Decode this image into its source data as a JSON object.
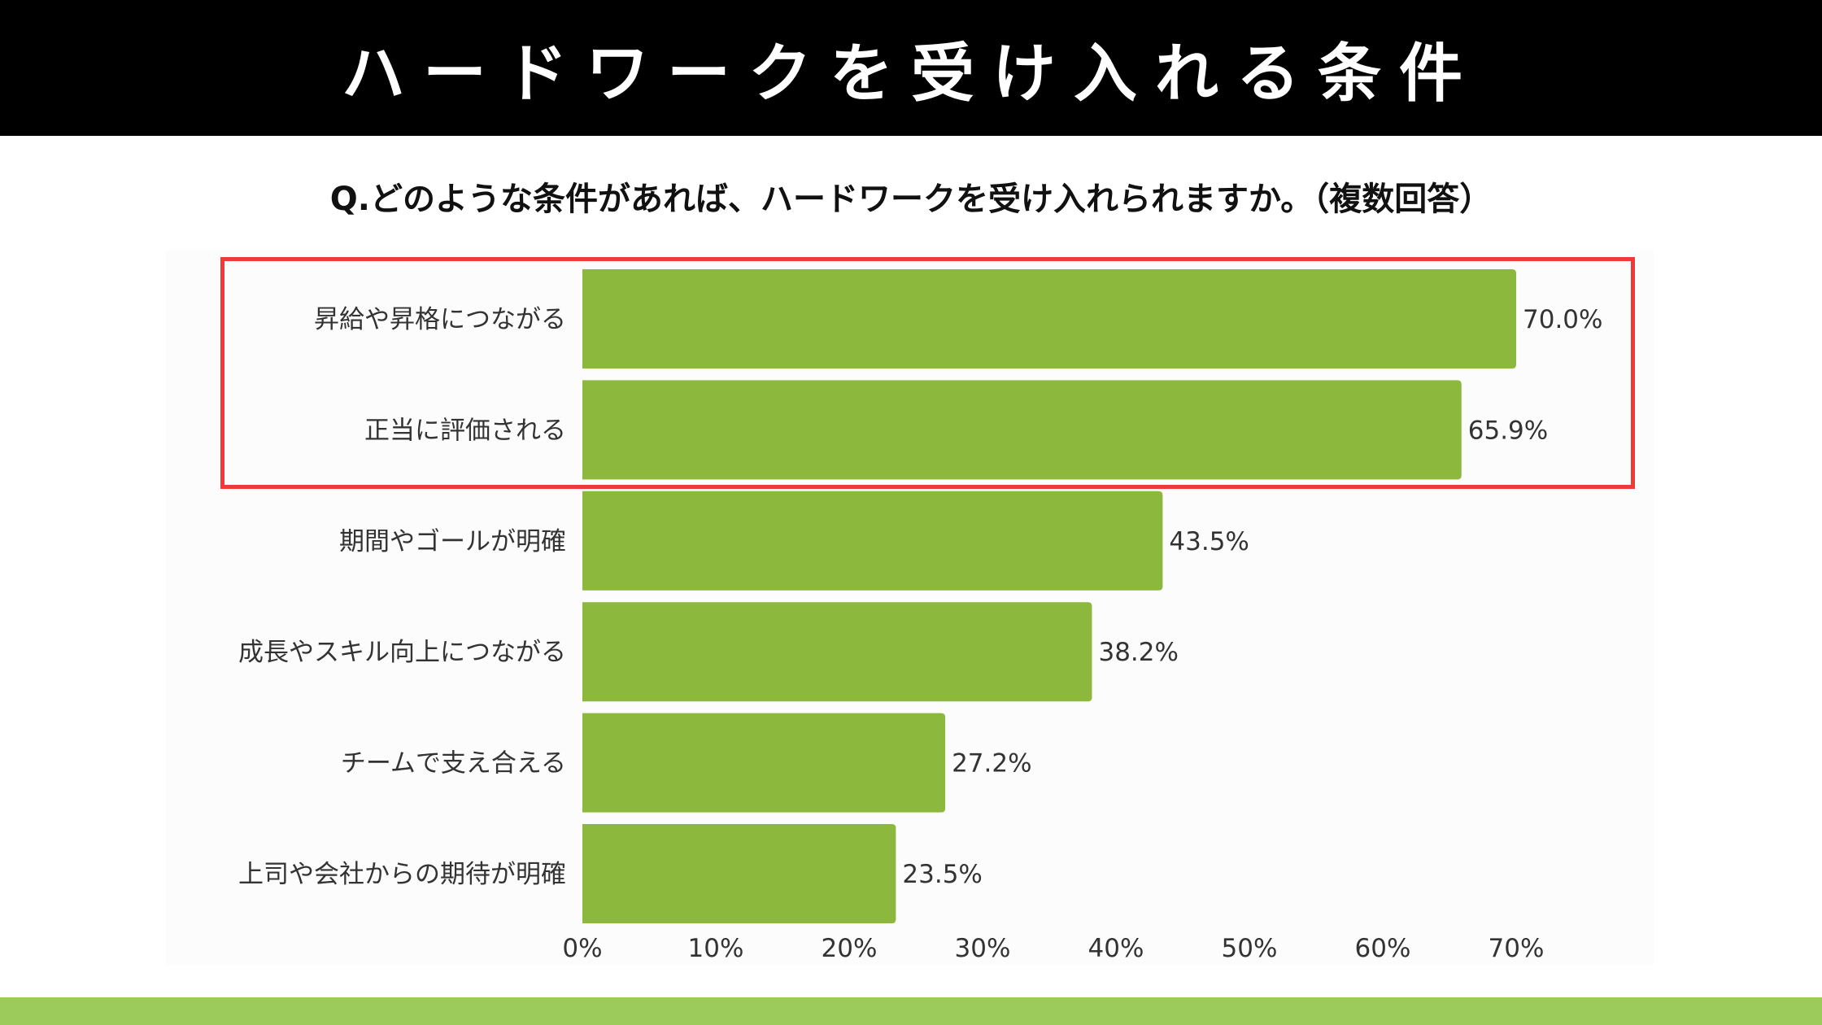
{
  "header": {
    "title": "ハードワークを受け入れる条件"
  },
  "question": "Q.どのような条件があれば、ハードワークを受け入れられますか。（複数回答）",
  "colors": {
    "bar": "#8bb83d",
    "highlight": "#f03a3a",
    "footer": "#9ccb5c"
  },
  "chart_data": {
    "type": "bar",
    "orientation": "horizontal",
    "categories": [
      "昇給や昇格につながる",
      "正当に評価される",
      "期間やゴールが明確",
      "成長やスキル向上につながる",
      "チームで支え合える",
      "上司や会社からの期待が明確"
    ],
    "values": [
      70.0,
      65.9,
      43.5,
      38.2,
      27.2,
      23.5
    ],
    "value_labels": [
      "70.0%",
      "65.9%",
      "43.5%",
      "38.2%",
      "27.2%",
      "23.5%"
    ],
    "xlim": [
      0,
      70
    ],
    "x_ticks": [
      0,
      10,
      20,
      30,
      40,
      50,
      60,
      70
    ],
    "x_tick_labels": [
      "0%",
      "10%",
      "20%",
      "30%",
      "40%",
      "50%",
      "60%",
      "70%"
    ],
    "highlighted_categories": [
      "昇給や昇格につながる",
      "正当に評価される"
    ],
    "grid": false
  }
}
